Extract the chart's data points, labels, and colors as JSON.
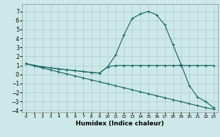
{
  "xlabel": "Humidex (Indice chaleur)",
  "background_color": "#cde8e8",
  "grid_color": "#afd0d0",
  "line_color": "#1e6b6b",
  "xlim": [
    -0.5,
    23.5
  ],
  "ylim": [
    -4.2,
    7.8
  ],
  "yticks": [
    -4,
    -3,
    -2,
    -1,
    0,
    1,
    2,
    3,
    4,
    5,
    6,
    7
  ],
  "xticks": [
    0,
    1,
    2,
    3,
    4,
    5,
    6,
    7,
    8,
    9,
    10,
    11,
    12,
    13,
    14,
    15,
    16,
    17,
    18,
    19,
    20,
    21,
    22,
    23
  ],
  "line1_x": [
    0,
    1,
    2,
    3,
    4,
    5,
    6,
    7,
    8,
    9,
    10,
    11,
    12,
    13,
    14,
    15,
    16,
    17,
    18,
    19,
    20,
    21,
    22,
    23
  ],
  "line1_y": [
    1.2,
    1.0,
    0.85,
    0.72,
    0.62,
    0.52,
    0.42,
    0.32,
    0.22,
    0.15,
    0.85,
    2.2,
    4.4,
    6.2,
    6.7,
    7.0,
    6.6,
    5.5,
    3.3,
    1.1,
    -1.2,
    -2.5,
    -3.0,
    -3.7
  ],
  "line2_x": [
    0,
    1,
    2,
    3,
    4,
    5,
    6,
    7,
    8,
    9,
    10,
    11,
    12,
    13,
    14,
    15,
    16,
    17,
    18,
    19,
    20,
    21,
    22,
    23
  ],
  "line2_y": [
    1.2,
    1.0,
    0.85,
    0.72,
    0.62,
    0.52,
    0.42,
    0.32,
    0.22,
    0.15,
    0.85,
    1.0,
    1.0,
    1.0,
    1.0,
    1.0,
    1.0,
    1.0,
    1.0,
    1.0,
    1.0,
    1.0,
    1.0,
    1.0
  ],
  "line3_x": [
    0,
    1,
    2,
    3,
    4,
    5,
    6,
    7,
    8,
    9,
    10,
    11,
    12,
    13,
    14,
    15,
    16,
    17,
    18,
    19,
    20,
    21,
    22,
    23
  ],
  "line3_y": [
    1.2,
    0.95,
    0.72,
    0.5,
    0.28,
    0.06,
    -0.16,
    -0.38,
    -0.6,
    -0.82,
    -1.04,
    -1.26,
    -1.48,
    -1.7,
    -1.92,
    -2.14,
    -2.36,
    -2.58,
    -2.8,
    -3.02,
    -3.24,
    -3.46,
    -3.68,
    -3.85
  ]
}
